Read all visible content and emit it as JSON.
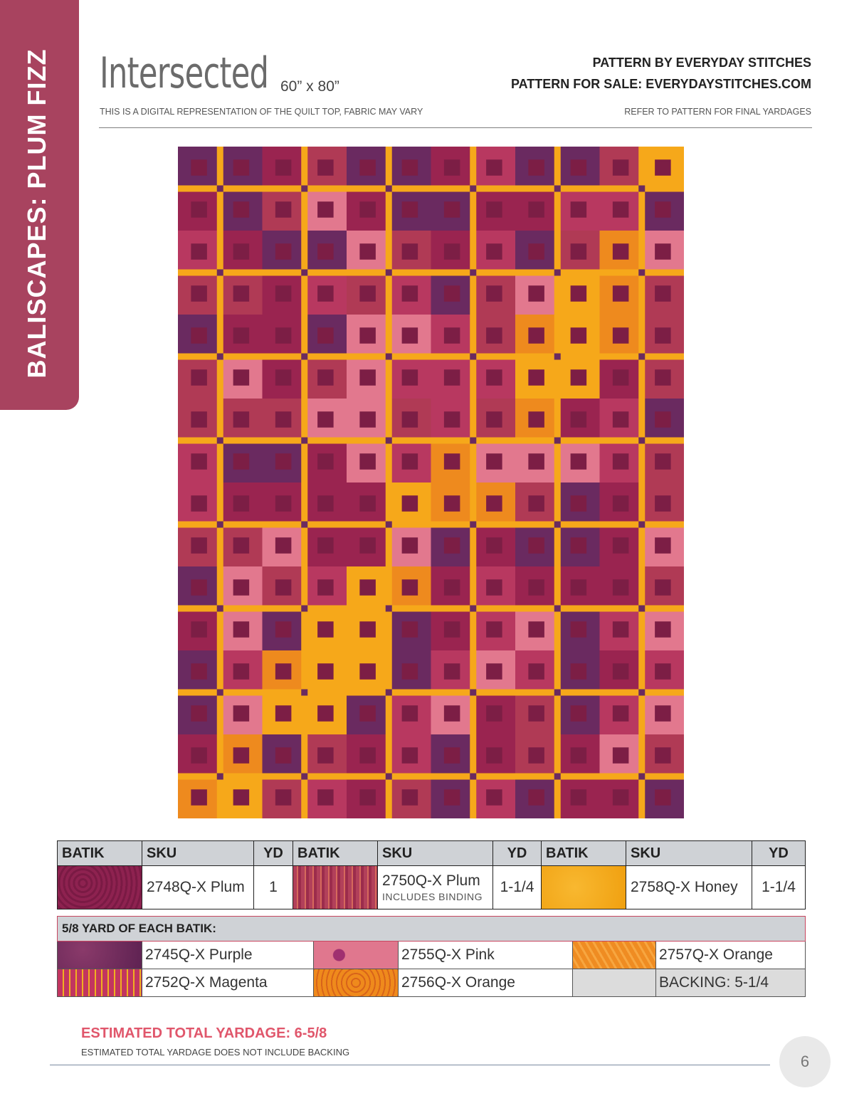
{
  "side_tab": {
    "text": "BALISCAPES:  PLUM FIZZ",
    "color": "#a8435f"
  },
  "header": {
    "title": "Intersected",
    "size": "60” x 80”",
    "pattern_by": "PATTERN BY EVERYDAY STITCHES",
    "pattern_for_sale": "PATTERN FOR SALE: EVERYDAYSTITCHES.COM",
    "disclaimer": "THIS IS A DIGITAL REPRESENTATION OF THE QUILT TOP, FABRIC MAY VARY",
    "refer": "REFER TO PATTERN FOR FINAL YARDAGES"
  },
  "quilt": {
    "colors": {
      "honey": "#f6a81a",
      "orange": "#ee8a1e",
      "plum": "#9a2450",
      "plum_stripe": "#b03a55",
      "purple": "#6a2a60",
      "pink": "#e2788e",
      "magenta": "#b83860",
      "center": "#7c1e45"
    }
  },
  "yardage_table": {
    "headers": [
      "BATIK",
      "SKU",
      "YD",
      "BATIK",
      "SKU",
      "YD",
      "BATIK",
      "SKU",
      "YD"
    ],
    "items": [
      {
        "swatch": "#8e2250",
        "sku": "2748Q-X Plum",
        "yd": "1",
        "note": ""
      },
      {
        "swatch": "#b2405a",
        "sku": "2750Q-X Plum",
        "yd": "1-1/4",
        "note": "INCLUDES BINDING"
      },
      {
        "swatch": "#f5aa1e",
        "sku": "2758Q-X Honey",
        "yd": "1-1/4",
        "note": ""
      }
    ]
  },
  "each_batik": {
    "title": "5/8 YARD OF EACH BATIK:",
    "rows": [
      [
        {
          "swatch": "#6e2a5a",
          "name": "2745Q-X Purple"
        },
        {
          "swatch": "#d86a82",
          "name": "2755Q-X Pink"
        },
        {
          "swatch": "#ef8c22",
          "name": "2757Q-X Orange"
        }
      ],
      [
        {
          "swatch": "#c23560",
          "name": "2752Q-X Magenta"
        },
        {
          "swatch": "#ef8a1c",
          "name": "2756Q-X Orange"
        },
        {
          "swatch": "",
          "name": "BACKING: 5-1/4"
        }
      ]
    ]
  },
  "footer": {
    "estimated_total": "ESTIMATED TOTAL YARDAGE: 6-5/8",
    "estimated_note": "ESTIMATED TOTAL YARDAGE DOES NOT INCLUDE BACKING",
    "page_number": "6"
  }
}
